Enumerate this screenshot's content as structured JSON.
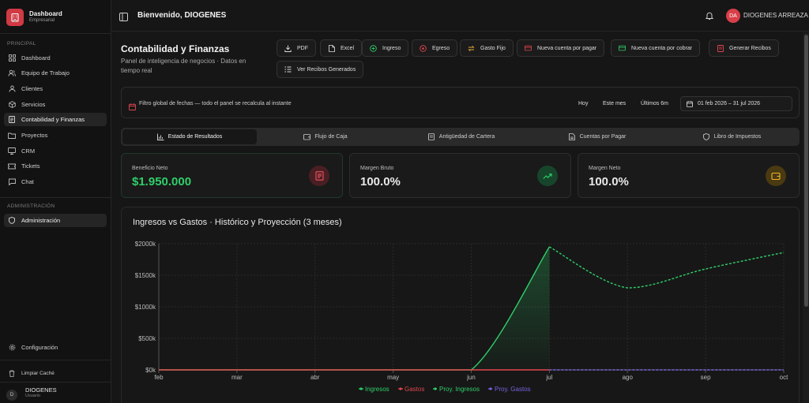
{
  "brand": {
    "title": "Dashboard",
    "subtitle": "Empresarial"
  },
  "sidebar": {
    "section_principal": "PRINCIPAL",
    "items": [
      {
        "label": "Dashboard",
        "icon": "grid-icon"
      },
      {
        "label": "Equipo de Trabajo",
        "icon": "users-icon"
      },
      {
        "label": "Clientes",
        "icon": "user-icon"
      },
      {
        "label": "Servicios",
        "icon": "box-icon"
      },
      {
        "label": "Contabilidad y Finanzas",
        "icon": "document-icon",
        "active": true
      },
      {
        "label": "Proyectos",
        "icon": "folder-icon"
      },
      {
        "label": "CRM",
        "icon": "monitor-icon"
      },
      {
        "label": "Tickets",
        "icon": "ticket-icon"
      },
      {
        "label": "Chat",
        "icon": "chat-icon"
      }
    ],
    "section_admin": "ADMINISTRACIÓN",
    "admin_item": "Administración",
    "config": "Configuración",
    "clear_cache": "Limpiar Caché",
    "user": {
      "initial": "D",
      "name": "DIOGENES",
      "role": "Usuario"
    }
  },
  "topbar": {
    "welcome": "Bienvenido, DIOGENES",
    "avatar_initials": "DA",
    "user_name": "DIOGENES ARREAZA"
  },
  "page": {
    "title": "Contabilidad y Finanzas",
    "subtitle": "Panel de inteligencia de negocios · Datos en tiempo real"
  },
  "actions": {
    "pdf": "PDF",
    "excel": "Excel",
    "ingreso": "Ingreso",
    "egreso": "Egreso",
    "gasto_fijo": "Gasto Fijo",
    "cuenta_pagar": "Nueva cuenta por pagar",
    "cuenta_cobrar": "Nueva cuenta por cobrar",
    "generar": "Generar Recibos",
    "ver_recibos": "Ver Recibos Generados"
  },
  "filter": {
    "text": "Filtro global de fechas — todo el panel se recalcula al instante",
    "hoy": "Hoy",
    "este_mes": "Este mes",
    "ultimos": "Últimos 6m",
    "range": "01 feb 2026 – 31 jul 2026"
  },
  "tabs": [
    "Estado de Resultados",
    "Flujo de Caja",
    "Antigüedad de Cartera",
    "Cuentas por Pagar",
    "Libro de Impuestos"
  ],
  "kpis": [
    {
      "label": "Beneficio Neto",
      "value": "$1.950.000",
      "color": "#2fcf6a",
      "icon": "receipt-icon"
    },
    {
      "label": "Margen Bruto",
      "value": "100.0%",
      "color": "#e8e8e8",
      "icon": "trending-up-icon"
    },
    {
      "label": "Margen Neto",
      "value": "100.0%",
      "color": "#e8e8e8",
      "icon": "wallet-icon"
    }
  ],
  "colors": {
    "accent": "#d93f48",
    "ingresos": "#2fcf6a",
    "gastos": "#e2474f",
    "proy_gastos": "#7a63e0"
  },
  "chart_data": {
    "type": "line",
    "title": "Ingresos vs Gastos · Histórico y Proyección (3 meses)",
    "categories": [
      "feb",
      "mar",
      "abr",
      "may",
      "jun",
      "jul",
      "ago",
      "sep",
      "oct"
    ],
    "y_ticks": [
      "$0k",
      "$500k",
      "$1000k",
      "$1500k",
      "$2000k"
    ],
    "ylim": [
      0,
      2000000
    ],
    "grid": true,
    "legend_position": "bottom",
    "series": [
      {
        "name": "Ingresos",
        "values": [
          0,
          0,
          0,
          0,
          0,
          1950000,
          null,
          null,
          null
        ],
        "color": "#2fcf6a",
        "style": "solid",
        "fill": true
      },
      {
        "name": "Gastos",
        "values": [
          0,
          0,
          0,
          0,
          0,
          0,
          null,
          null,
          null
        ],
        "color": "#e2474f",
        "style": "solid"
      },
      {
        "name": "Proy. Ingresos",
        "values": [
          null,
          null,
          null,
          null,
          null,
          1950000,
          1300000,
          1600000,
          1860000
        ],
        "color": "#2fcf6a",
        "style": "dashed"
      },
      {
        "name": "Proy. Gastos",
        "values": [
          null,
          null,
          null,
          null,
          null,
          0,
          0,
          0,
          0
        ],
        "color": "#7a63e0",
        "style": "dashed"
      }
    ]
  }
}
